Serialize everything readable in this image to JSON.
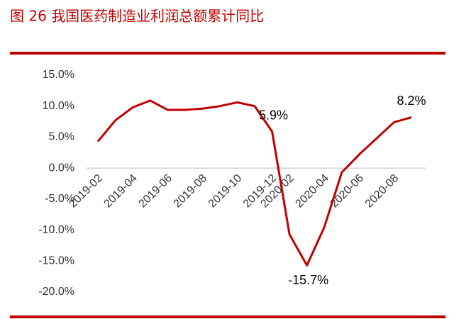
{
  "chart_data": {
    "type": "line",
    "title": "图 26  我国医药制造业利润总额累计同比",
    "categories": [
      "2019-02",
      null,
      "2019-04",
      null,
      "2019-06",
      null,
      "2019-08",
      null,
      "2019-10",
      null,
      "2019-12",
      "2020-02",
      null,
      "2020-04",
      null,
      "2020-06",
      null,
      "2020-08",
      null
    ],
    "series": [
      {
        "color": "#c00000",
        "values": [
          4.3,
          7.7,
          9.8,
          10.9,
          9.4,
          9.4,
          9.6,
          10.0,
          10.6,
          10.0,
          5.9,
          -10.7,
          -15.7,
          -9.5,
          -0.7,
          2.2,
          4.8,
          7.4,
          8.2
        ],
        "value_labels": [
          null,
          null,
          null,
          null,
          null,
          null,
          null,
          null,
          null,
          null,
          "5.9%",
          null,
          "-15.7%",
          null,
          null,
          null,
          null,
          null,
          "8.2%"
        ]
      }
    ],
    "ylim": [
      -20,
      15
    ],
    "yticks": [
      {
        "value": 15,
        "label": "15.0%"
      },
      {
        "value": 10,
        "label": "10.0%"
      },
      {
        "value": 5,
        "label": "5.0%"
      },
      {
        "value": 0,
        "label": "0.0%"
      },
      {
        "value": -5,
        "label": "-5.0%"
      },
      {
        "value": -10,
        "label": "-10.0%"
      },
      {
        "value": -15,
        "label": "-15.0%"
      },
      {
        "value": -20,
        "label": "-20.0%"
      }
    ]
  }
}
